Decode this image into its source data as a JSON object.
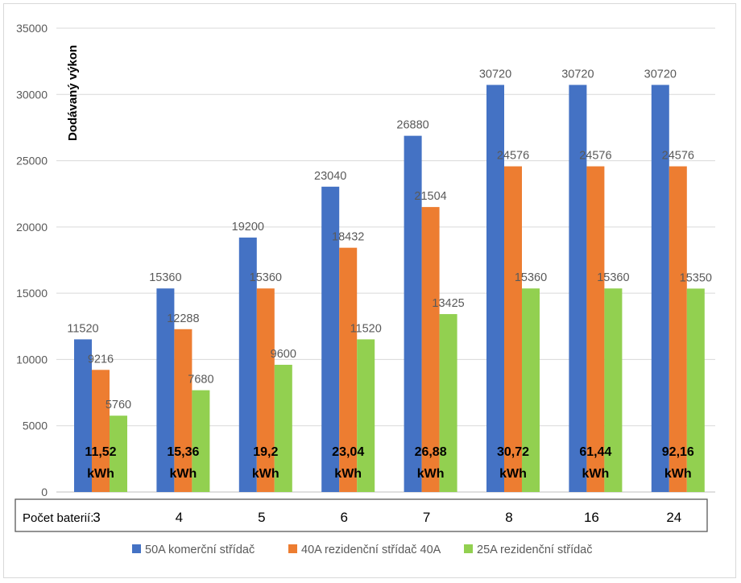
{
  "chart_data": {
    "type": "bar",
    "ylabel": "Dodávaný výkon",
    "xlabel": "Počet baterií:",
    "ylim": [
      0,
      35000
    ],
    "yticks": [
      0,
      5000,
      10000,
      15000,
      20000,
      25000,
      30000,
      35000
    ],
    "grid": true,
    "legend_position": "bottom",
    "categories": [
      "3",
      "4",
      "5",
      "6",
      "7",
      "8",
      "16",
      "24"
    ],
    "capacity_labels": [
      [
        "11,52",
        "kWh"
      ],
      [
        "15,36",
        "kWh"
      ],
      [
        "19,2",
        "kWh"
      ],
      [
        "23,04",
        "kWh"
      ],
      [
        "26,88",
        "kWh"
      ],
      [
        "30,72",
        "kWh"
      ],
      [
        "61,44",
        "kWh"
      ],
      [
        "92,16",
        "kWh"
      ]
    ],
    "series": [
      {
        "name": "50A komerční střídač",
        "color": "#4472c4",
        "values": [
          11520,
          15360,
          19200,
          23040,
          26880,
          30720,
          30720,
          30720
        ]
      },
      {
        "name": "40A rezidenční střídač 40A",
        "color": "#ed7d31",
        "values": [
          9216,
          12288,
          15360,
          18432,
          21504,
          24576,
          24576,
          24576
        ]
      },
      {
        "name": "25A rezidenční střídač",
        "color": "#92d050",
        "values": [
          5760,
          7680,
          9600,
          11520,
          13425,
          15360,
          15360,
          15350
        ]
      }
    ]
  }
}
